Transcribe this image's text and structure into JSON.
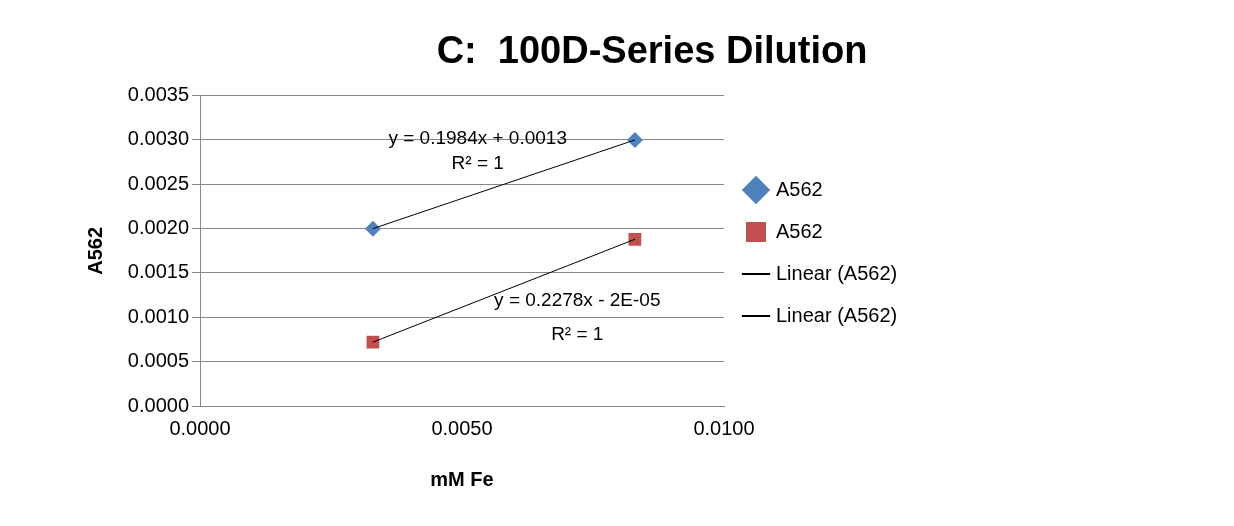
{
  "chart_data": {
    "type": "scatter",
    "title": "C:  100D-Series Dilution",
    "xlabel": "mM Fe",
    "ylabel": "A562",
    "xlim": [
      0,
      0.01
    ],
    "xticks": [
      {
        "value": 0,
        "label": "0.0000"
      },
      {
        "value": 0.005,
        "label": "0.0050"
      },
      {
        "value": 0.01,
        "label": "0.0100"
      }
    ],
    "ylim": [
      0,
      0.0035
    ],
    "yticks": [
      {
        "value": 0,
        "label": "0.0000"
      },
      {
        "value": 0.0005,
        "label": "0.0005"
      },
      {
        "value": 0.001,
        "label": "0.0010"
      },
      {
        "value": 0.0015,
        "label": "0.0015"
      },
      {
        "value": 0.002,
        "label": "0.0020"
      },
      {
        "value": 0.0025,
        "label": "0.0025"
      },
      {
        "value": 0.003,
        "label": "0.0030"
      },
      {
        "value": 0.0035,
        "label": "0.0035"
      }
    ],
    "grid": "y",
    "legend": "right",
    "x": [
      0.0033,
      0.0083
    ],
    "series": [
      {
        "name": "A562",
        "marker": "diamond",
        "color": "#4f81bd",
        "values": [
          0.002,
          0.003
        ]
      },
      {
        "name": "A562",
        "marker": "square",
        "color": "#c0504d",
        "values": [
          0.00072,
          0.00188
        ]
      },
      {
        "name": "Linear (A562)",
        "type": "line",
        "marker": "none",
        "color": "#000000",
        "values": [
          0.002,
          0.003
        ]
      },
      {
        "name": "Linear (A562)",
        "type": "line",
        "marker": "none",
        "color": "#000000",
        "values": [
          0.00072,
          0.00188
        ]
      }
    ],
    "annotations": [
      "y = 0.1984x + 0.0013",
      "R² = 1",
      "y = 0.2278x - 2E-05",
      "R² = 1"
    ]
  }
}
